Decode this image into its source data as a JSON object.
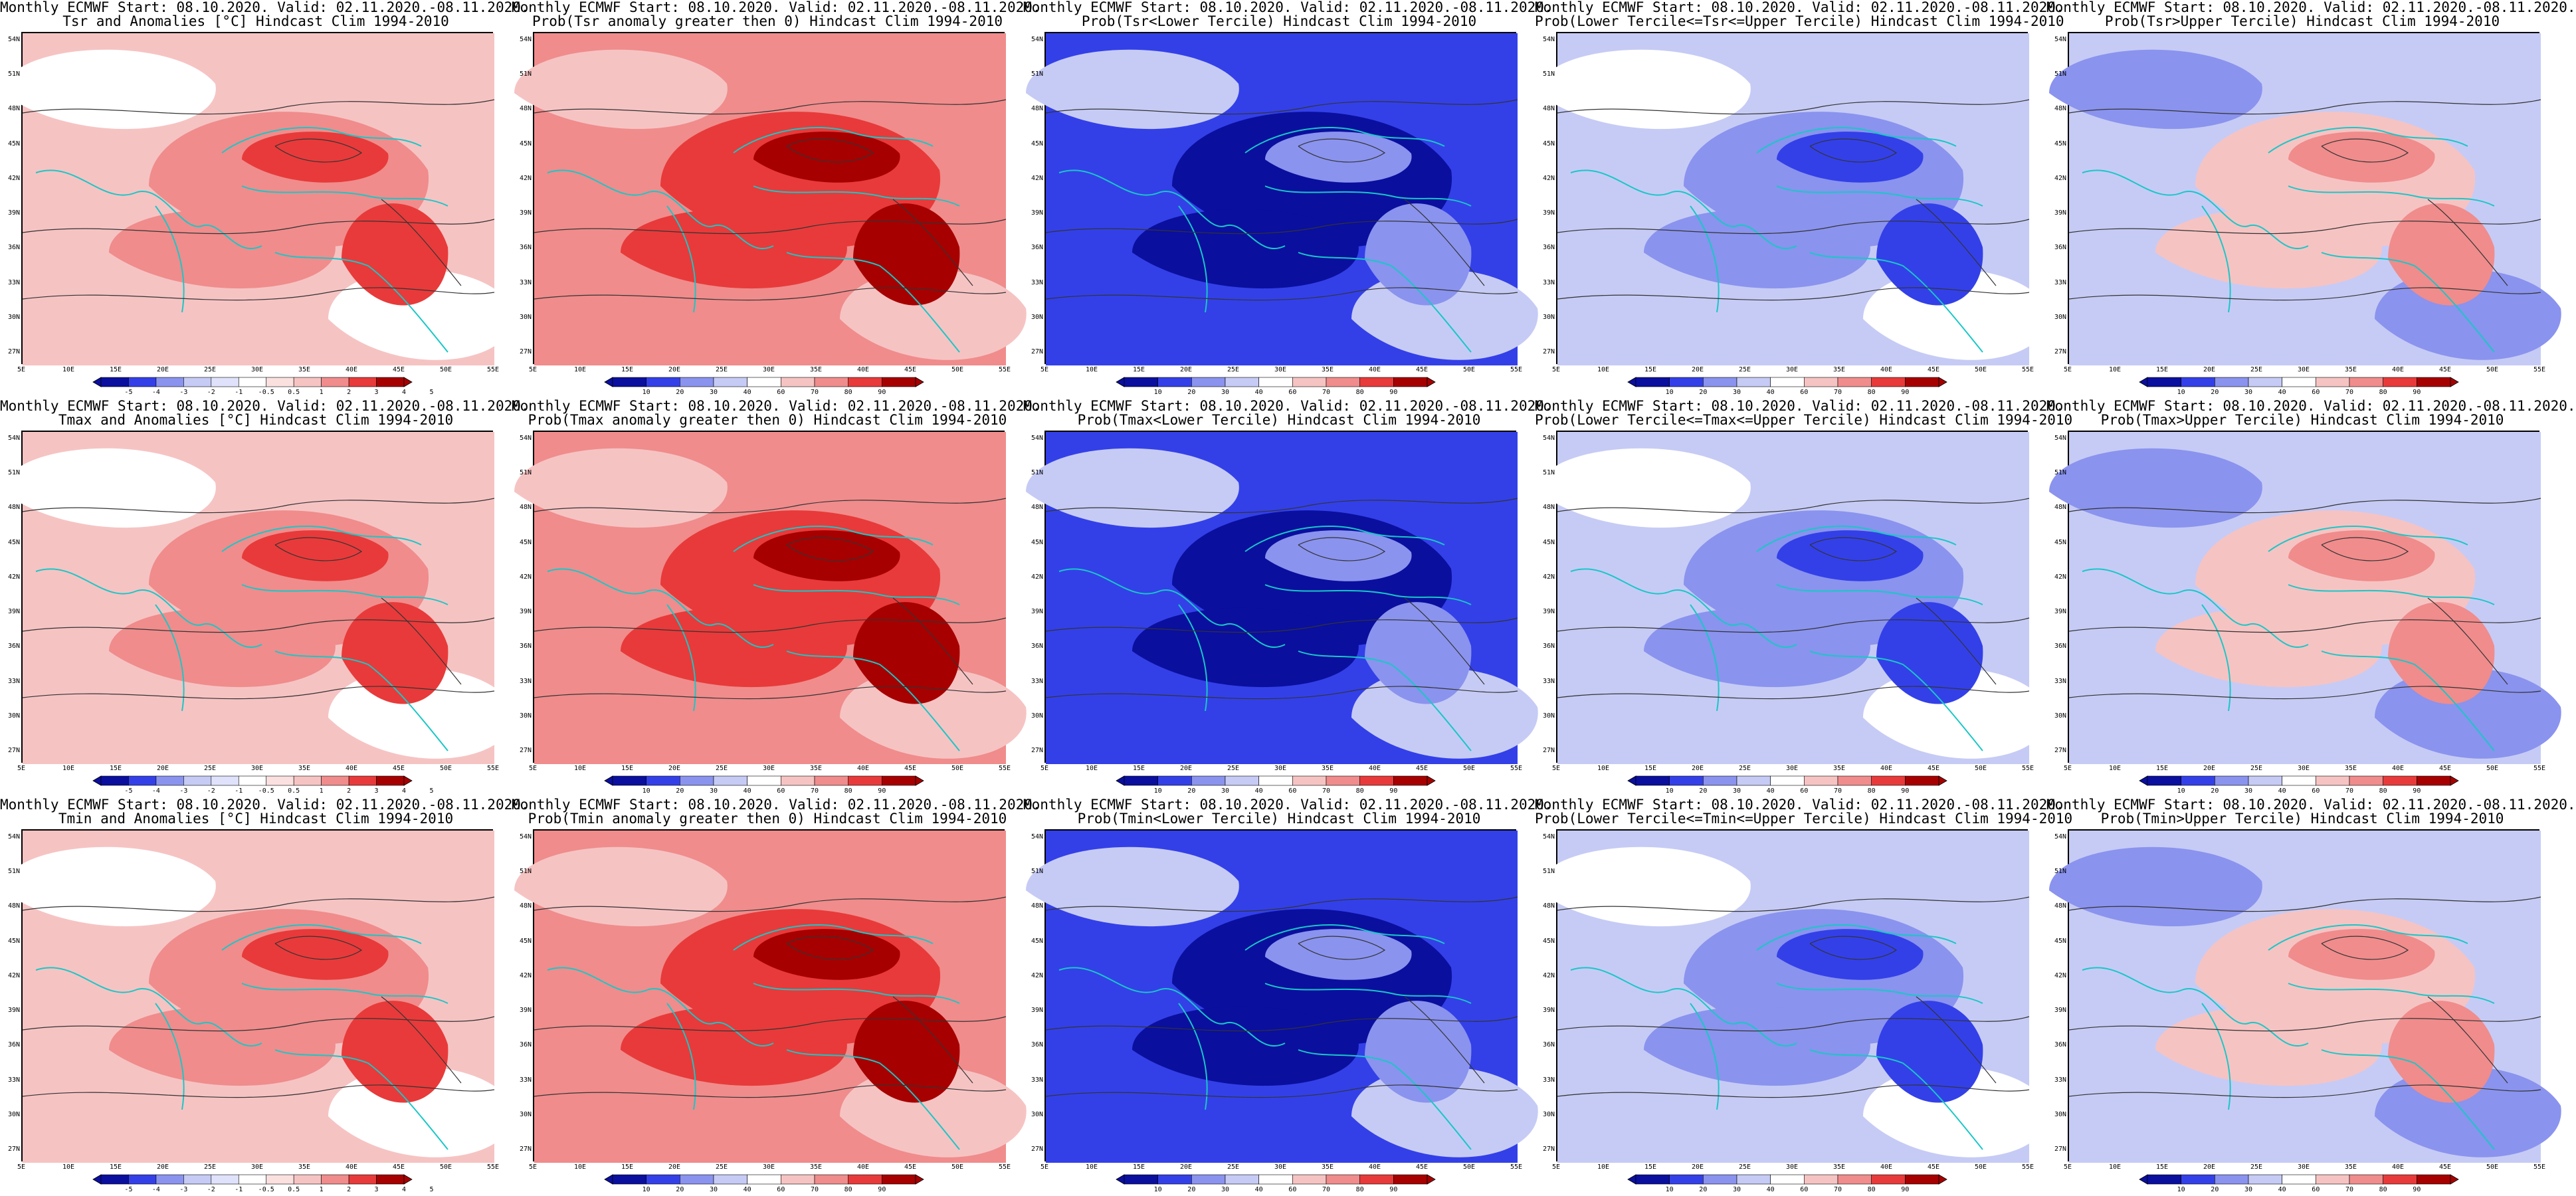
{
  "colors": {
    "warm_light": "#f6c3c3",
    "warm_mid": "#f08c8c",
    "warm_strong": "#e83a3a",
    "warm_dark": "#a60000",
    "cool_light": "#c6cbf5",
    "cool_mid": "#8a93ee",
    "cool_strong": "#3340e8",
    "cool_dark": "#0a0f9e",
    "coast": "#19c7c7",
    "contour": "#333333"
  },
  "map": {
    "lat_labels": [
      "54N",
      "51N",
      "48N",
      "45N",
      "42N",
      "39N",
      "36N",
      "33N",
      "30N",
      "27N"
    ],
    "lon_labels": [
      "5E",
      "10E",
      "15E",
      "20E",
      "25E",
      "30E",
      "35E",
      "40E",
      "45E",
      "50E",
      "55E"
    ]
  },
  "colorbars": {
    "anomaly_tsr": [
      "-5",
      "-4",
      "-3",
      "-2",
      "-1",
      "-0.5",
      "0.5",
      "1",
      "2",
      "3",
      "4",
      "5"
    ],
    "anomaly": [
      "-5",
      "-4",
      "-3",
      "-2",
      "-1",
      "-0.5",
      "0.5",
      "1",
      "2",
      "3",
      "4",
      "5"
    ],
    "probability": [
      "10",
      "20",
      "30",
      "40",
      "60",
      "70",
      "80",
      "90"
    ]
  },
  "panels": [
    {
      "title1": "Monthly ECMWF Start: 08.10.2020. Valid: 02.11.2020.-08.11.2020.",
      "title2": "Tsr and Anomalies [°C] Hindcast Clim 1994-2010",
      "scheme": "warm",
      "bar": "anomaly_tsr"
    },
    {
      "title1": "Monthly ECMWF Start: 08.10.2020. Valid: 02.11.2020.-08.11.2020.",
      "title2": "Prob(Tsr anomaly greater then 0) Hindcast Clim 1994-2010",
      "scheme": "warmstrong",
      "bar": "probability"
    },
    {
      "title1": "Monthly ECMWF Start: 08.10.2020. Valid: 02.11.2020.-08.11.2020.",
      "title2": "Prob(Tsr<Lower Tercile) Hindcast Clim 1994-2010",
      "scheme": "coolstrong",
      "bar": "probability"
    },
    {
      "title1": "Monthly ECMWF Start: 08.10.2020. Valid: 02.11.2020.-08.11.2020.",
      "title2": "Prob(Lower Tercile<=Tsr<=Upper Tercile) Hindcast Clim 1994-2010",
      "scheme": "cool",
      "bar": "probability"
    },
    {
      "title1": "Monthly ECMWF Start: 08.10.2020. Valid: 02.11.2020.-08.11.2020.",
      "title2": "Prob(Tsr>Upper Tercile) Hindcast Clim 1994-2010",
      "scheme": "mixed",
      "bar": "probability"
    },
    {
      "title1": "Monthly ECMWF Start: 08.10.2020. Valid: 02.11.2020.-08.11.2020.",
      "title2": "Tmax and Anomalies [°C] Hindcast Clim 1994-2010",
      "scheme": "warm",
      "bar": "anomaly"
    },
    {
      "title1": "Monthly ECMWF Start: 08.10.2020. Valid: 02.11.2020.-08.11.2020.",
      "title2": "Prob(Tmax anomaly greater then 0) Hindcast Clim 1994-2010",
      "scheme": "warmstrong",
      "bar": "probability"
    },
    {
      "title1": "Monthly ECMWF Start: 08.10.2020. Valid: 02.11.2020.-08.11.2020.",
      "title2": "Prob(Tmax<Lower Tercile) Hindcast Clim 1994-2010",
      "scheme": "coolstrong",
      "bar": "probability"
    },
    {
      "title1": "Monthly ECMWF Start: 08.10.2020. Valid: 02.11.2020.-08.11.2020.",
      "title2": "Prob(Lower Tercile<=Tmax<=Upper Tercile) Hindcast Clim 1994-2010",
      "scheme": "cool",
      "bar": "probability"
    },
    {
      "title1": "Monthly ECMWF Start: 08.10.2020. Valid: 02.11.2020.-08.11.2020.",
      "title2": "Prob(Tmax>Upper Tercile) Hindcast Clim 1994-2010",
      "scheme": "mixed",
      "bar": "probability"
    },
    {
      "title1": "Monthly ECMWF Start: 08.10.2020. Valid: 02.11.2020.-08.11.2020.",
      "title2": "Tmin and Anomalies [°C] Hindcast Clim 1994-2010",
      "scheme": "warm",
      "bar": "anomaly"
    },
    {
      "title1": "Monthly ECMWF Start: 08.10.2020. Valid: 02.11.2020.-08.11.2020.",
      "title2": "Prob(Tmin anomaly greater then 0) Hindcast Clim 1994-2010",
      "scheme": "warmstrong",
      "bar": "probability"
    },
    {
      "title1": "Monthly ECMWF Start: 08.10.2020. Valid: 02.11.2020.-08.11.2020.",
      "title2": "Prob(Tmin<Lower Tercile) Hindcast Clim 1994-2010",
      "scheme": "coolstrong",
      "bar": "probability"
    },
    {
      "title1": "Monthly ECMWF Start: 08.10.2020. Valid: 02.11.2020.-08.11.2020.",
      "title2": "Prob(Lower Tercile<=Tmin<=Upper Tercile) Hindcast Clim 1994-2010",
      "scheme": "cool",
      "bar": "probability"
    },
    {
      "title1": "Monthly ECMWF Start: 08.10.2020. Valid: 02.11.2020.-08.11.2020.",
      "title2": "Prob(Tmin>Upper Tercile) Hindcast Clim 1994-2010",
      "scheme": "mixed",
      "bar": "probability"
    }
  ]
}
